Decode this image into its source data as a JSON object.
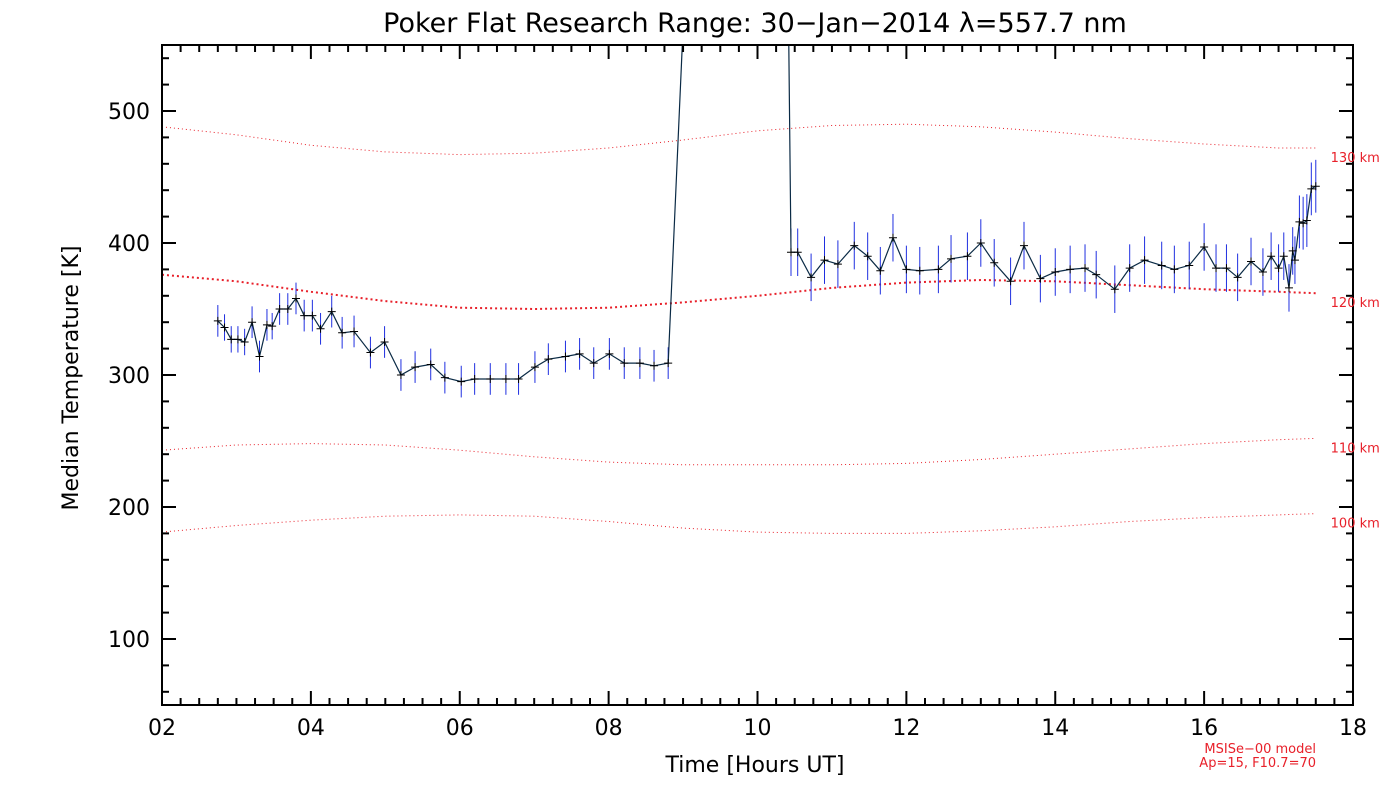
{
  "chart_data": {
    "type": "line",
    "title": "Poker Flat Research Range: 30−Jan−2014 λ=557.7 nm",
    "xlabel": "Time [Hours UT]",
    "ylabel": "Median Temperature [K]",
    "xlim": [
      2,
      18
    ],
    "ylim": [
      50,
      550
    ],
    "x_ticks": [
      2,
      4,
      6,
      8,
      10,
      12,
      14,
      16,
      18
    ],
    "x_tick_labels": [
      "02",
      "04",
      "06",
      "08",
      "10",
      "12",
      "14",
      "16",
      "18"
    ],
    "y_ticks": [
      100,
      200,
      300,
      400,
      500
    ],
    "y_tick_labels": [
      "100",
      "200",
      "300",
      "400",
      "500"
    ],
    "colors": {
      "data_line": "#0a2a45",
      "error_bars": "#1f2fe0",
      "markers": "#000000",
      "model": "#e8202a",
      "axes": "#000000"
    },
    "series": [
      {
        "x": [
          2.75,
          2.84,
          2.93,
          3.02,
          3.11,
          3.21,
          3.31,
          3.41,
          3.48,
          3.58,
          3.69,
          3.8,
          3.91,
          4.02,
          4.13,
          4.28,
          4.42,
          4.58,
          4.8,
          4.99,
          5.21,
          5.4,
          5.61,
          5.8,
          6.02,
          6.2,
          6.41,
          6.62,
          6.79,
          7.01,
          7.19,
          7.42,
          7.61,
          7.8,
          8.01,
          8.21,
          8.42,
          8.61,
          8.8,
          8.99,
          9.68,
          9.7,
          10.42,
          10.45,
          10.54,
          10.72,
          10.9,
          11.08,
          11.3,
          11.48,
          11.65,
          11.82,
          12.0,
          12.18,
          12.43,
          12.6,
          12.82,
          13.0,
          13.18,
          13.4,
          13.58,
          13.8,
          14.0,
          14.2,
          14.4,
          14.55,
          14.8,
          15.0,
          15.2,
          15.43,
          15.6,
          15.8,
          16.0,
          16.16,
          16.3,
          16.45,
          16.63,
          16.79,
          16.9,
          17.0,
          17.07,
          17.14,
          17.19,
          17.22,
          17.28,
          17.33,
          17.38,
          17.44,
          17.5
        ],
        "y": [
          341,
          336,
          327,
          327,
          325,
          340,
          314,
          338,
          337,
          350,
          350,
          358,
          345,
          345,
          335,
          348,
          332,
          333,
          317,
          325,
          300,
          306,
          308,
          298,
          295,
          297,
          297,
          297,
          297,
          306,
          312,
          314,
          316,
          309,
          316,
          309,
          309,
          307,
          309,
          550,
          550,
          550,
          550,
          393,
          393,
          374,
          387,
          384,
          398,
          390,
          379,
          404,
          380,
          379,
          380,
          388,
          390,
          400,
          385,
          371,
          398,
          373,
          378,
          380,
          381,
          376,
          365,
          381,
          387,
          383,
          380,
          383,
          397,
          381,
          381,
          374,
          386,
          378,
          390,
          381,
          390,
          366,
          394,
          387,
          416,
          415,
          417,
          441,
          443
        ],
        "errors": [
          12,
          10,
          10,
          10,
          10,
          12,
          12,
          12,
          10,
          12,
          12,
          12,
          12,
          12,
          12,
          12,
          12,
          12,
          12,
          12,
          12,
          12,
          12,
          12,
          12,
          12,
          12,
          12,
          12,
          12,
          12,
          12,
          12,
          12,
          12,
          12,
          12,
          12,
          12,
          0,
          0,
          0,
          0,
          18,
          18,
          18,
          18,
          18,
          18,
          18,
          18,
          18,
          18,
          18,
          18,
          18,
          18,
          18,
          18,
          18,
          18,
          18,
          18,
          18,
          18,
          18,
          18,
          18,
          18,
          18,
          18,
          18,
          18,
          18,
          18,
          18,
          18,
          18,
          18,
          18,
          18,
          18,
          18,
          18,
          20,
          20,
          20,
          20,
          20
        ]
      }
    ],
    "model_curves": [
      {
        "name": "130 km",
        "x": [
          2,
          3,
          4,
          5,
          6,
          7,
          8,
          9,
          10,
          11,
          12,
          13,
          14,
          15,
          16,
          17,
          17.5
        ],
        "y": [
          488,
          482,
          474,
          469,
          467,
          468,
          472,
          478,
          485,
          489,
          490,
          488,
          484,
          479,
          475,
          472,
          472
        ]
      },
      {
        "name": "120 km",
        "x": [
          2,
          3,
          4,
          5,
          6,
          7,
          8,
          9,
          10,
          11,
          12,
          13,
          14,
          15,
          16,
          17,
          17.5
        ],
        "y": [
          376,
          371,
          363,
          356,
          351,
          350,
          351,
          355,
          360,
          366,
          370,
          372,
          371,
          368,
          365,
          363,
          362
        ]
      },
      {
        "name": "110 km",
        "x": [
          2,
          3,
          4,
          5,
          6,
          7,
          8,
          9,
          10,
          11,
          12,
          13,
          14,
          15,
          16,
          17,
          17.5
        ],
        "y": [
          243,
          247,
          248,
          247,
          243,
          238,
          234,
          232,
          232,
          232,
          233,
          236,
          240,
          244,
          248,
          251,
          252
        ]
      },
      {
        "name": "100 km",
        "x": [
          2,
          3,
          4,
          5,
          6,
          7,
          8,
          9,
          10,
          11,
          12,
          13,
          14,
          15,
          16,
          17,
          17.5
        ],
        "y": [
          181,
          186,
          190,
          193,
          194,
          193,
          189,
          184,
          181,
          180,
          180,
          182,
          185,
          189,
          192,
          194,
          195
        ]
      }
    ],
    "model_note_line1": "MSISe−00 model",
    "model_note_line2": "Ap=15, F10.7=70"
  }
}
